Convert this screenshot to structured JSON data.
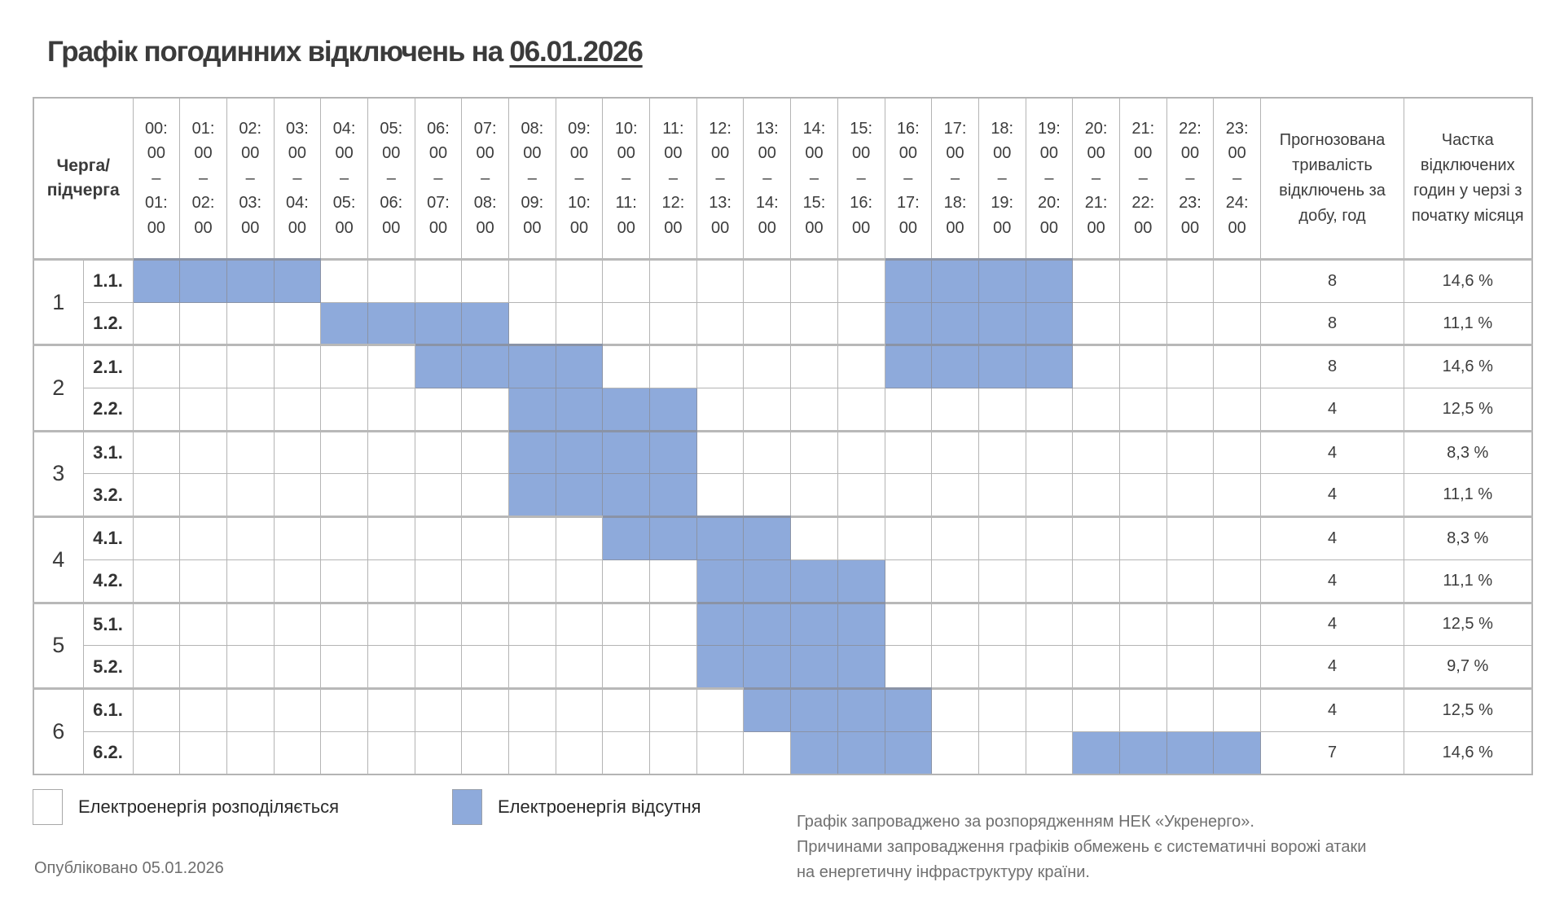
{
  "title": {
    "prefix": "Графік погодинних відключень на ",
    "date": "06.01.2026"
  },
  "table": {
    "queue_header": [
      "Черга/",
      "підчерга"
    ],
    "duration_header": "Прогнозована тривалість відключень за добу, год",
    "share_header": "Частка відключених годин у черзі з початку місяця",
    "hours": [
      [
        "00:",
        "00",
        "–",
        "01:",
        "00"
      ],
      [
        "01:",
        "00",
        "–",
        "02:",
        "00"
      ],
      [
        "02:",
        "00",
        "–",
        "03:",
        "00"
      ],
      [
        "03:",
        "00",
        "–",
        "04:",
        "00"
      ],
      [
        "04:",
        "00",
        "–",
        "05:",
        "00"
      ],
      [
        "05:",
        "00",
        "–",
        "06:",
        "00"
      ],
      [
        "06:",
        "00",
        "–",
        "07:",
        "00"
      ],
      [
        "07:",
        "00",
        "–",
        "08:",
        "00"
      ],
      [
        "08:",
        "00",
        "–",
        "09:",
        "00"
      ],
      [
        "09:",
        "00",
        "–",
        "10:",
        "00"
      ],
      [
        "10:",
        "00",
        "–",
        "11:",
        "00"
      ],
      [
        "11:",
        "00",
        "–",
        "12:",
        "00"
      ],
      [
        "12:",
        "00",
        "–",
        "13:",
        "00"
      ],
      [
        "13:",
        "00",
        "–",
        "14:",
        "00"
      ],
      [
        "14:",
        "00",
        "–",
        "15:",
        "00"
      ],
      [
        "15:",
        "00",
        "–",
        "16:",
        "00"
      ],
      [
        "16:",
        "00",
        "–",
        "17:",
        "00"
      ],
      [
        "17:",
        "00",
        "–",
        "18:",
        "00"
      ],
      [
        "18:",
        "00",
        "–",
        "19:",
        "00"
      ],
      [
        "19:",
        "00",
        "–",
        "20:",
        "00"
      ],
      [
        "20:",
        "00",
        "–",
        "21:",
        "00"
      ],
      [
        "21:",
        "00",
        "–",
        "22:",
        "00"
      ],
      [
        "22:",
        "00",
        "–",
        "23:",
        "00"
      ],
      [
        "23:",
        "00",
        "–",
        "24:",
        "00"
      ]
    ],
    "groups": [
      {
        "label": "1",
        "rows": [
          {
            "sub": "1.1.",
            "duration": "8",
            "share": "14,6 %"
          },
          {
            "sub": "1.2.",
            "duration": "8",
            "share": "11,1 %"
          }
        ]
      },
      {
        "label": "2",
        "rows": [
          {
            "sub": "2.1.",
            "duration": "8",
            "share": "14,6 %"
          },
          {
            "sub": "2.2.",
            "duration": "4",
            "share": "12,5 %"
          }
        ]
      },
      {
        "label": "3",
        "rows": [
          {
            "sub": "3.1.",
            "duration": "4",
            "share": "8,3 %"
          },
          {
            "sub": "3.2.",
            "duration": "4",
            "share": "11,1 %"
          }
        ]
      },
      {
        "label": "4",
        "rows": [
          {
            "sub": "4.1.",
            "duration": "4",
            "share": "8,3 %"
          },
          {
            "sub": "4.2.",
            "duration": "4",
            "share": "11,1 %"
          }
        ]
      },
      {
        "label": "5",
        "rows": [
          {
            "sub": "5.1.",
            "duration": "4",
            "share": "12,5 %"
          },
          {
            "sub": "5.2.",
            "duration": "4",
            "share": "9,7 %"
          }
        ]
      },
      {
        "label": "6",
        "rows": [
          {
            "sub": "6.1.",
            "duration": "4",
            "share": "12,5 %"
          },
          {
            "sub": "6.2.",
            "duration": "7",
            "share": "14,6 %"
          }
        ]
      }
    ]
  },
  "legend": {
    "on_label": "Електроенергія розподіляється",
    "off_label": "Електроенергія відсутня"
  },
  "published": "Опубліковано 05.01.2026",
  "footnote": [
    "Графік запроваджено за розпорядженням НЕК «Укренерго».",
    "Причинами запровадження графіків обмежень є систематичні ворожі атаки",
    "на енергетичну інфраструктуру країни."
  ],
  "colors": {
    "outage": "#8eaadb",
    "available": "#ffffff",
    "grid": "#b4b4b4",
    "text": "#3a3a3a"
  },
  "chart_data": {
    "type": "table",
    "title": "Графік погодинних відключень на 06.01.2026",
    "x": [
      "00-01",
      "01-02",
      "02-03",
      "03-04",
      "04-05",
      "05-06",
      "06-07",
      "07-08",
      "08-09",
      "09-10",
      "10-11",
      "11-12",
      "12-13",
      "13-14",
      "14-15",
      "15-16",
      "16-17",
      "17-18",
      "18-19",
      "19-20",
      "20-21",
      "21-22",
      "22-23",
      "23-24"
    ],
    "legend": [
      "Електроенергія розподіляється",
      "Електроенергія відсутня"
    ],
    "series": [
      {
        "name": "1.1.",
        "outage_hours": [
          0,
          1,
          2,
          3,
          16,
          17,
          18,
          19
        ],
        "duration": 8,
        "share": "14,6 %"
      },
      {
        "name": "1.2.",
        "outage_hours": [
          4,
          5,
          6,
          7,
          16,
          17,
          18,
          19
        ],
        "duration": 8,
        "share": "11,1 %"
      },
      {
        "name": "2.1.",
        "outage_hours": [
          6,
          7,
          8,
          9,
          16,
          17,
          18,
          19
        ],
        "duration": 8,
        "share": "14,6 %"
      },
      {
        "name": "2.2.",
        "outage_hours": [
          8,
          9,
          10,
          11
        ],
        "duration": 4,
        "share": "12,5 %"
      },
      {
        "name": "3.1.",
        "outage_hours": [
          8,
          9,
          10,
          11
        ],
        "duration": 4,
        "share": "8,3 %"
      },
      {
        "name": "3.2.",
        "outage_hours": [
          8,
          9,
          10,
          11
        ],
        "duration": 4,
        "share": "11,1 %"
      },
      {
        "name": "4.1.",
        "outage_hours": [
          10,
          11,
          12,
          13
        ],
        "duration": 4,
        "share": "8,3 %"
      },
      {
        "name": "4.2.",
        "outage_hours": [
          12,
          13,
          14,
          15
        ],
        "duration": 4,
        "share": "11,1 %"
      },
      {
        "name": "5.1.",
        "outage_hours": [
          12,
          13,
          14,
          15
        ],
        "duration": 4,
        "share": "12,5 %"
      },
      {
        "name": "5.2.",
        "outage_hours": [
          12,
          13,
          14,
          15
        ],
        "duration": 4,
        "share": "9,7 %"
      },
      {
        "name": "6.1.",
        "outage_hours": [
          13,
          14,
          15,
          16
        ],
        "duration": 4,
        "share": "12,5 %"
      },
      {
        "name": "6.2.",
        "outage_hours": [
          14,
          15,
          16,
          20,
          21,
          22,
          23
        ],
        "duration": 7,
        "share": "14,6 %"
      }
    ]
  }
}
